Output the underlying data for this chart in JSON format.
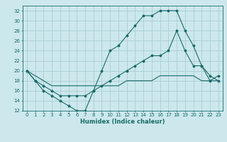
{
  "xlabel": "Humidex (Indice chaleur)",
  "ylabel": "",
  "bg_color": "#cce8ec",
  "grid_color": "#aacdd4",
  "line_color": "#1a6b6b",
  "xlim": [
    -0.5,
    23.5
  ],
  "ylim": [
    12,
    33
  ],
  "xticks": [
    0,
    1,
    2,
    3,
    4,
    5,
    6,
    7,
    8,
    9,
    10,
    11,
    12,
    13,
    14,
    15,
    16,
    17,
    18,
    19,
    20,
    21,
    22,
    23
  ],
  "yticks": [
    12,
    14,
    16,
    18,
    20,
    22,
    24,
    26,
    28,
    30,
    32
  ],
  "curve1_x": [
    0,
    1,
    2,
    3,
    4,
    5,
    6,
    7,
    8,
    9,
    10,
    11,
    12,
    13,
    14,
    15,
    16,
    17,
    18,
    19,
    20,
    21,
    22,
    23
  ],
  "curve1_y": [
    20,
    18,
    16,
    15,
    14,
    13,
    12,
    12,
    16,
    20,
    24,
    25,
    27,
    29,
    31,
    31,
    32,
    32,
    32,
    28,
    25,
    21,
    19,
    18
  ],
  "curve2_x": [
    0,
    1,
    2,
    3,
    4,
    5,
    6,
    7,
    8,
    9,
    10,
    11,
    12,
    13,
    14,
    15,
    16,
    17,
    18,
    19,
    20,
    21,
    22,
    23
  ],
  "curve2_y": [
    20,
    18,
    17,
    16,
    15,
    15,
    15,
    15,
    16,
    17,
    18,
    19,
    20,
    21,
    22,
    23,
    23,
    24,
    28,
    24,
    21,
    21,
    18,
    19
  ],
  "curve3_x": [
    0,
    1,
    2,
    3,
    4,
    5,
    6,
    7,
    8,
    9,
    10,
    11,
    12,
    13,
    14,
    15,
    16,
    17,
    18,
    19,
    20,
    21,
    22,
    23
  ],
  "curve3_y": [
    20,
    19,
    18,
    17,
    17,
    17,
    17,
    17,
    17,
    17,
    17,
    17,
    18,
    18,
    18,
    18,
    19,
    19,
    19,
    19,
    19,
    18,
    18,
    18
  ]
}
